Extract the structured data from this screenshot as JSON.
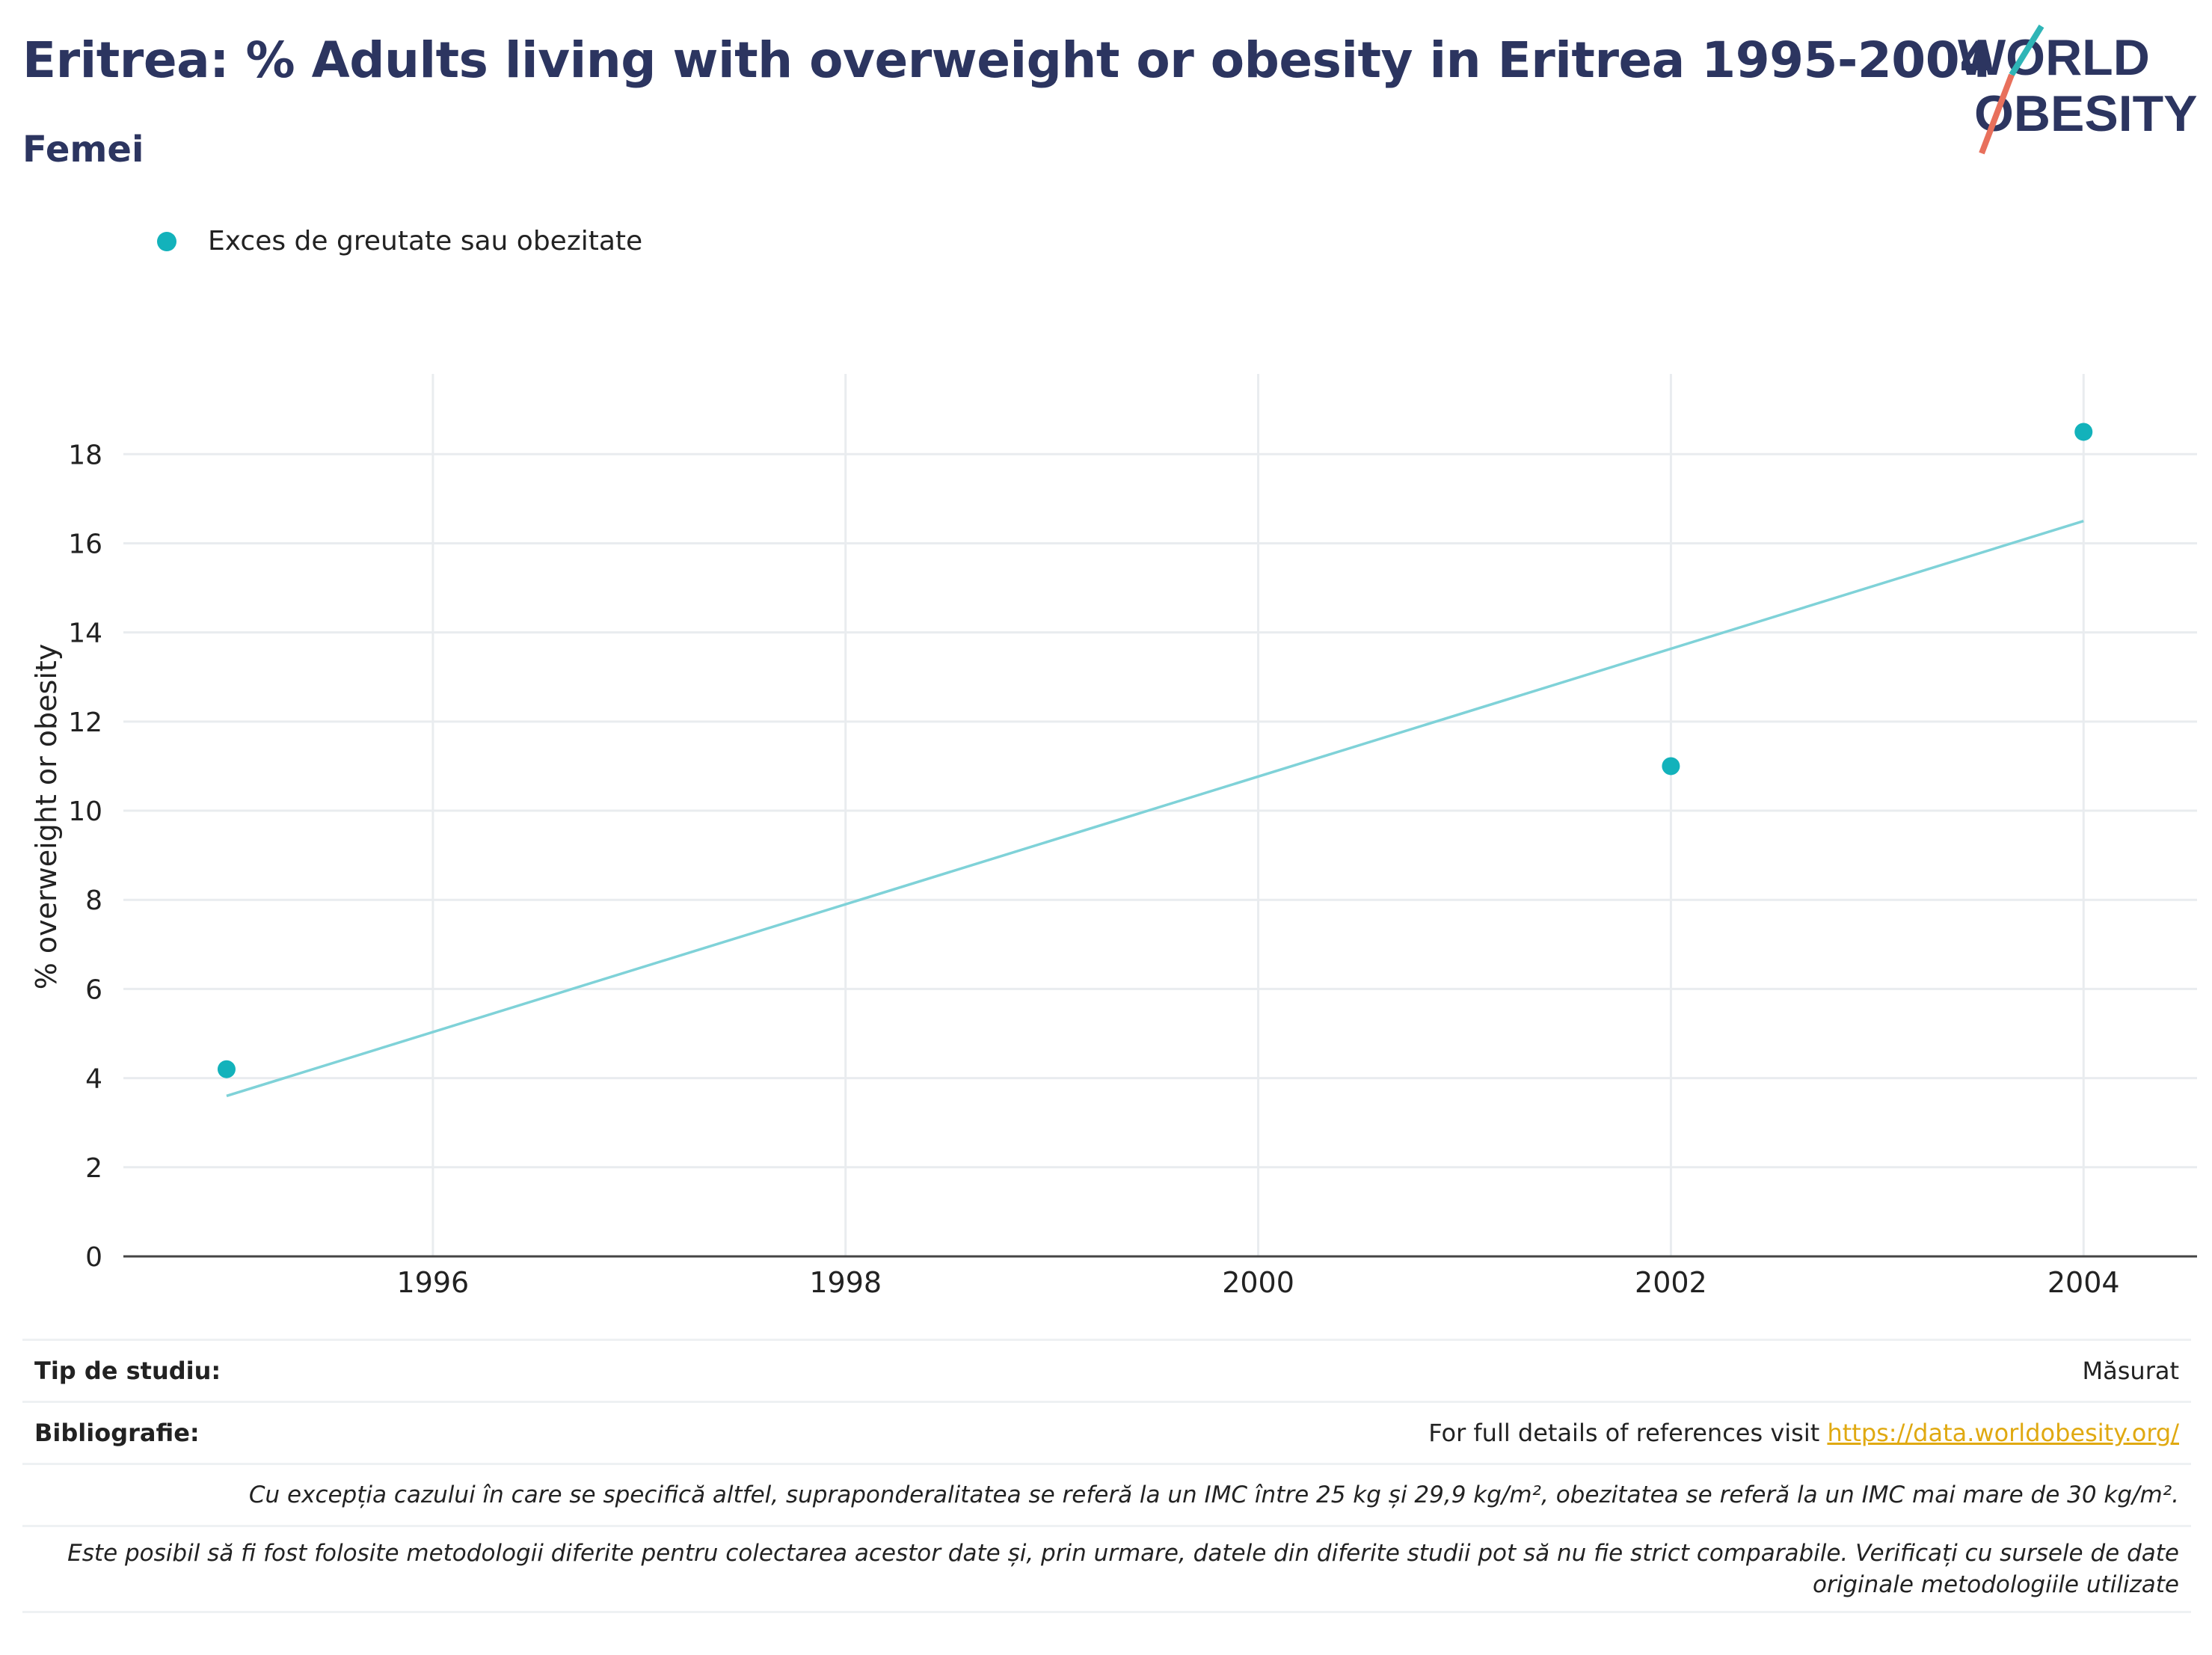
{
  "header": {
    "title": "Eritrea: % Adults living with overweight or obesity in Eritrea 1995-2004",
    "subtitle": "Femei"
  },
  "logo": {
    "line1": "WORLD",
    "line2": "OBESITY"
  },
  "colors": {
    "title": "#2c3560",
    "point": "#13b2bb",
    "trend": "#7fd2d8",
    "grid": "#e9ecef",
    "axis": "#444444",
    "link": "#e0a911"
  },
  "chart_data": {
    "type": "scatter",
    "title": "",
    "xlabel": "",
    "ylabel": "% overweight or obesity",
    "legend": {
      "position": "top-left",
      "entries": [
        "Exces de greutate sau obezitate"
      ]
    },
    "series": [
      {
        "name": "Exces de greutate sau obezitate",
        "points": [
          {
            "x": 1995,
            "y": 4.2
          },
          {
            "x": 2002,
            "y": 11.0
          },
          {
            "x": 2004,
            "y": 18.5
          }
        ]
      }
    ],
    "trendline": {
      "from": {
        "x": 1995,
        "y": 3.6
      },
      "to": {
        "x": 2004,
        "y": 16.5
      }
    },
    "xlim": [
      1994.5,
      2004.55
    ],
    "ylim": [
      0,
      19.8
    ],
    "xticks": [
      "1996",
      "1998",
      "2000",
      "2002",
      "2004"
    ],
    "yticks": [
      "0",
      "2",
      "4",
      "6",
      "8",
      "10",
      "12",
      "14",
      "16",
      "18"
    ],
    "grid": true
  },
  "info": {
    "study_type_label": "Tip de studiu:",
    "study_type_value": "Măsurat",
    "bibliography_label": "Bibliografie:",
    "bibliography_text": "For full details of references visit",
    "bibliography_link": "https://data.worldobesity.org/",
    "note1": "Cu excepția cazului în care se specifică altfel, supraponderalitatea se referă la un IMC între 25 kg și 29,9 kg/m², obezitatea se referă la un IMC mai mare de 30 kg/m².",
    "note2": "Este posibil să fi fost folosite metodologii diferite pentru colectarea acestor date și, prin urmare, datele din diferite studii pot să nu fie strict comparabile. Verificați cu sursele de date originale metodologiile utilizate"
  }
}
